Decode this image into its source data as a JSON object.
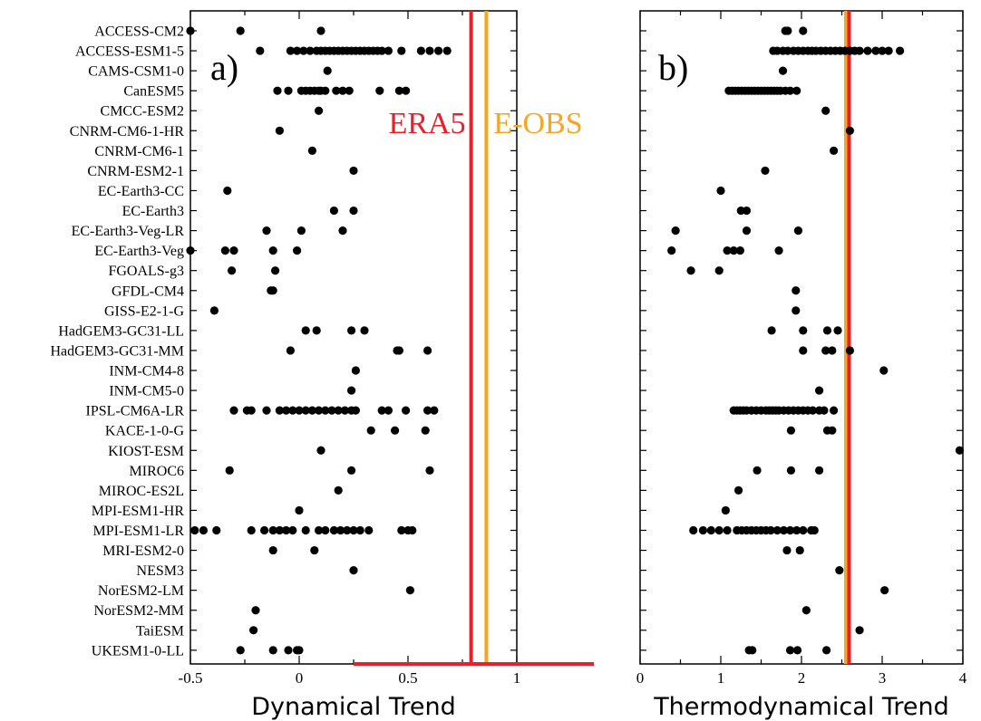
{
  "chart_data": [
    {
      "type": "scatter",
      "panel_label": "a)",
      "xlabel": "Dynamical Trend",
      "xlim": [
        -0.5,
        1
      ],
      "xticks": [
        -0.5,
        0,
        0.5,
        1
      ],
      "xtick_labels": [
        "-0.5",
        "0",
        "0.5",
        "1"
      ],
      "reference_lines": [
        {
          "name": "ERA5",
          "x": 0.79,
          "color": "#e8202a"
        },
        {
          "name": "E-OBS",
          "x": 0.86,
          "color": "#f5a623"
        }
      ],
      "models": [
        "ACCESS-CM2",
        "ACCESS-ESM1-5",
        "CAMS-CSM1-0",
        "CanESM5",
        "CMCC-ESM2",
        "CNRM-CM6-1-HR",
        "CNRM-CM6-1",
        "CNRM-ESM2-1",
        "EC-Earth3-CC",
        "EC-Earth3",
        "EC-Earth3-Veg-LR",
        "EC-Earth3-Veg",
        "FGOALS-g3",
        "GFDL-CM4",
        "GISS-E2-1-G",
        "HadGEM3-GC31-LL",
        "HadGEM3-GC31-MM",
        "INM-CM4-8",
        "INM-CM5-0",
        "IPSL-CM6A-LR",
        "KACE-1-0-G",
        "KIOST-ESM",
        "MIROC6",
        "MIROC-ES2L",
        "MPI-ESM1-HR",
        "MPI-ESM1-LR",
        "MRI-ESM2-0",
        "NESM3",
        "NorESM2-LM",
        "NorESM2-MM",
        "TaiESM",
        "UKESM1-0-LL"
      ],
      "values": [
        [
          -0.5,
          -0.27,
          0.1
        ],
        [
          -0.18,
          -0.04,
          -0.01,
          0.02,
          0.05,
          0.08,
          0.1,
          0.12,
          0.14,
          0.16,
          0.18,
          0.2,
          0.22,
          0.24,
          0.26,
          0.28,
          0.3,
          0.32,
          0.34,
          0.36,
          0.38,
          0.41,
          0.47,
          0.56,
          0.6,
          0.64,
          0.68
        ],
        [
          0.13
        ],
        [
          -0.1,
          -0.05,
          0.01,
          0.03,
          0.05,
          0.07,
          0.09,
          0.1,
          0.12,
          0.17,
          0.2,
          0.23,
          0.37,
          0.46,
          0.49
        ],
        [
          0.09
        ],
        [
          -0.09
        ],
        [
          0.06
        ],
        [
          0.25
        ],
        [
          -0.33
        ],
        [
          0.16,
          0.25
        ],
        [
          -0.15,
          0.01,
          0.2
        ],
        [
          -0.5,
          -0.34,
          -0.3,
          -0.12,
          -0.01
        ],
        [
          -0.31,
          -0.11
        ],
        [
          -0.13,
          -0.12
        ],
        [
          -0.39
        ],
        [
          0.03,
          0.08,
          0.24,
          0.3
        ],
        [
          -0.04,
          0.45,
          0.46,
          0.59
        ],
        [
          0.26
        ],
        [
          0.24
        ],
        [
          -0.3,
          -0.24,
          -0.22,
          -0.15,
          -0.09,
          -0.06,
          -0.03,
          0.0,
          0.03,
          0.06,
          0.09,
          0.12,
          0.15,
          0.18,
          0.21,
          0.24,
          0.26,
          0.38,
          0.41,
          0.49,
          0.59,
          0.62
        ],
        [
          0.33,
          0.44,
          0.58
        ],
        [
          0.1
        ],
        [
          -0.32,
          0.24,
          0.6
        ],
        [
          0.18
        ],
        [
          0.0
        ],
        [
          -0.48,
          -0.44,
          -0.38,
          -0.22,
          -0.16,
          -0.12,
          -0.09,
          -0.06,
          -0.03,
          0.03,
          0.09,
          0.12,
          0.16,
          0.19,
          0.22,
          0.25,
          0.28,
          0.32,
          0.47,
          0.5,
          0.52
        ],
        [
          -0.12,
          0.07
        ],
        [
          0.25
        ],
        [
          0.51
        ],
        [
          -0.2
        ],
        [
          -0.21
        ],
        [
          -0.27,
          -0.12,
          -0.05,
          -0.01,
          0.0
        ]
      ]
    },
    {
      "type": "scatter",
      "panel_label": "b)",
      "xlabel": "Thermodynamical Trend",
      "xlim": [
        0,
        4
      ],
      "xticks": [
        0,
        1,
        2,
        3,
        4
      ],
      "xtick_labels": [
        "0",
        "1",
        "2",
        "3",
        "4"
      ],
      "reference_lines": [
        {
          "name": "E-OBS",
          "x": 2.55,
          "color": "#f5a623"
        },
        {
          "name": "ERA5",
          "x": 2.59,
          "color": "#e8202a"
        }
      ],
      "models": [
        "ACCESS-CM2",
        "ACCESS-ESM1-5",
        "CAMS-CSM1-0",
        "CanESM5",
        "CMCC-ESM2",
        "CNRM-CM6-1-HR",
        "CNRM-CM6-1",
        "CNRM-ESM2-1",
        "EC-Earth3-CC",
        "EC-Earth3",
        "EC-Earth3-Veg-LR",
        "EC-Earth3-Veg",
        "FGOALS-g3",
        "GFDL-CM4",
        "GISS-E2-1-G",
        "HadGEM3-GC31-LL",
        "HadGEM3-GC31-MM",
        "INM-CM4-8",
        "INM-CM5-0",
        "IPSL-CM6A-LR",
        "KACE-1-0-G",
        "KIOST-ESM",
        "MIROC6",
        "MIROC-ES2L",
        "MPI-ESM1-HR",
        "MPI-ESM1-LR",
        "MRI-ESM2-0",
        "NESM3",
        "NorESM2-LM",
        "NorESM2-MM",
        "TaiESM",
        "UKESM1-0-LL"
      ],
      "values": [
        [
          1.8,
          1.83,
          2.02
        ],
        [
          1.65,
          1.7,
          1.77,
          1.83,
          1.9,
          1.96,
          2.02,
          2.08,
          2.13,
          2.18,
          2.24,
          2.3,
          2.36,
          2.42,
          2.48,
          2.54,
          2.6,
          2.66,
          2.72,
          2.82,
          2.92,
          3.0,
          3.08,
          3.22
        ],
        [
          1.77
        ],
        [
          1.1,
          1.14,
          1.18,
          1.22,
          1.26,
          1.3,
          1.34,
          1.38,
          1.42,
          1.46,
          1.5,
          1.54,
          1.58,
          1.62,
          1.66,
          1.7,
          1.74,
          1.8,
          1.86,
          1.94
        ],
        [
          2.3
        ],
        [
          2.6
        ],
        [
          2.4
        ],
        [
          1.55
        ],
        [
          1.0
        ],
        [
          1.25,
          1.32
        ],
        [
          0.44,
          1.32,
          1.96
        ],
        [
          0.39,
          1.08,
          1.16,
          1.24,
          1.72
        ],
        [
          0.63,
          0.98
        ],
        [
          1.93
        ],
        [
          1.93
        ],
        [
          1.63,
          2.02,
          2.32,
          2.45
        ],
        [
          2.02,
          2.3,
          2.38,
          2.6
        ],
        [
          3.02
        ],
        [
          2.22
        ],
        [
          1.16,
          1.2,
          1.24,
          1.28,
          1.32,
          1.38,
          1.44,
          1.5,
          1.56,
          1.6,
          1.64,
          1.68,
          1.72,
          1.78,
          1.84,
          1.9,
          1.96,
          2.02,
          2.08,
          2.14,
          2.22,
          2.28,
          2.4
        ],
        [
          1.87,
          2.32,
          2.38
        ],
        [
          3.96
        ],
        [
          1.45,
          1.87,
          2.22
        ],
        [
          1.22
        ],
        [
          1.06
        ],
        [
          0.66,
          0.78,
          0.88,
          0.98,
          1.08,
          1.2,
          1.26,
          1.32,
          1.38,
          1.44,
          1.5,
          1.56,
          1.62,
          1.7,
          1.78,
          1.86,
          1.94,
          2.02,
          2.12,
          2.16
        ],
        [
          1.82,
          1.98
        ],
        [
          2.47
        ],
        [
          3.03
        ],
        [
          2.06
        ],
        [
          2.72
        ],
        [
          1.35,
          1.39,
          1.86,
          1.95,
          2.31
        ]
      ]
    }
  ]
}
